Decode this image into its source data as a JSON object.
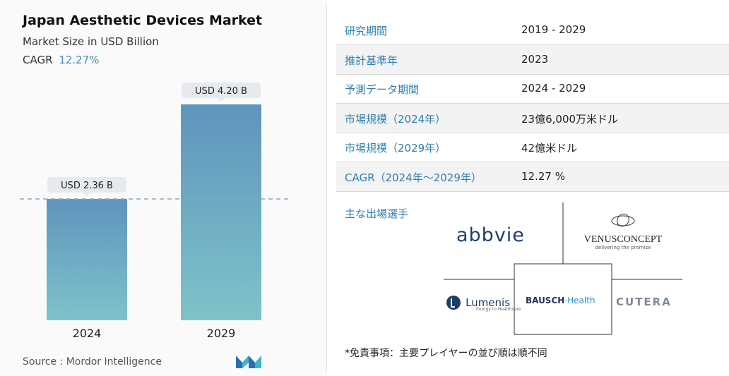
{
  "header": {
    "title": "Japan Aesthetic Devices Market",
    "subtitle": "Market Size in USD Billion",
    "cagr_label": "CAGR",
    "cagr_value": "12.27%"
  },
  "chart_data": {
    "type": "bar",
    "categories": [
      "2024",
      "2029"
    ],
    "values": [
      2.36,
      4.2
    ],
    "data_labels": [
      "USD 2.36 B",
      "USD 4.20 B"
    ],
    "title": "Japan Aesthetic Devices Market",
    "subtitle": "Market Size in USD Billion",
    "xlabel": "",
    "ylabel": "",
    "ylim": [
      0,
      4.2
    ],
    "grid": false,
    "reference_line": 2.36,
    "colors": {
      "bar_top": "#5f94bd",
      "bar_bottom": "#7fc3c9",
      "label_bg": "#e6eaee",
      "dash": "#8aa8c2"
    }
  },
  "source": "Source :  Mordor Intelligence",
  "table": {
    "rows": [
      {
        "key": "研究期間",
        "value": "2019 - 2029"
      },
      {
        "key": "推計基準年",
        "value": "2023"
      },
      {
        "key": "予測データ期間",
        "value": "2024 - 2029"
      },
      {
        "key": "市場規模（2024年）",
        "value": "23億6,000万米ドル"
      },
      {
        "key": "市場規模（2029年）",
        "value": "42億米ドル"
      },
      {
        "key": "CAGR（2024年～2029年）",
        "value": "12.27 %"
      }
    ],
    "band_color": "#f3f3f3"
  },
  "players": {
    "title": "主な出場選手",
    "abbvie": "abbvie",
    "venus_name": "VENUSCONCEPT",
    "venus_tag": "delivering the promise",
    "lumenis_name": "Lumenis",
    "lumenis_tag": "Energy to Healthcare",
    "bausch_a": "BAUSCH",
    "bausch_b": "·Health",
    "cutera": "CUTERA"
  },
  "disclaimer": "*免責事項：主要プレイヤーの並び順は順不同"
}
